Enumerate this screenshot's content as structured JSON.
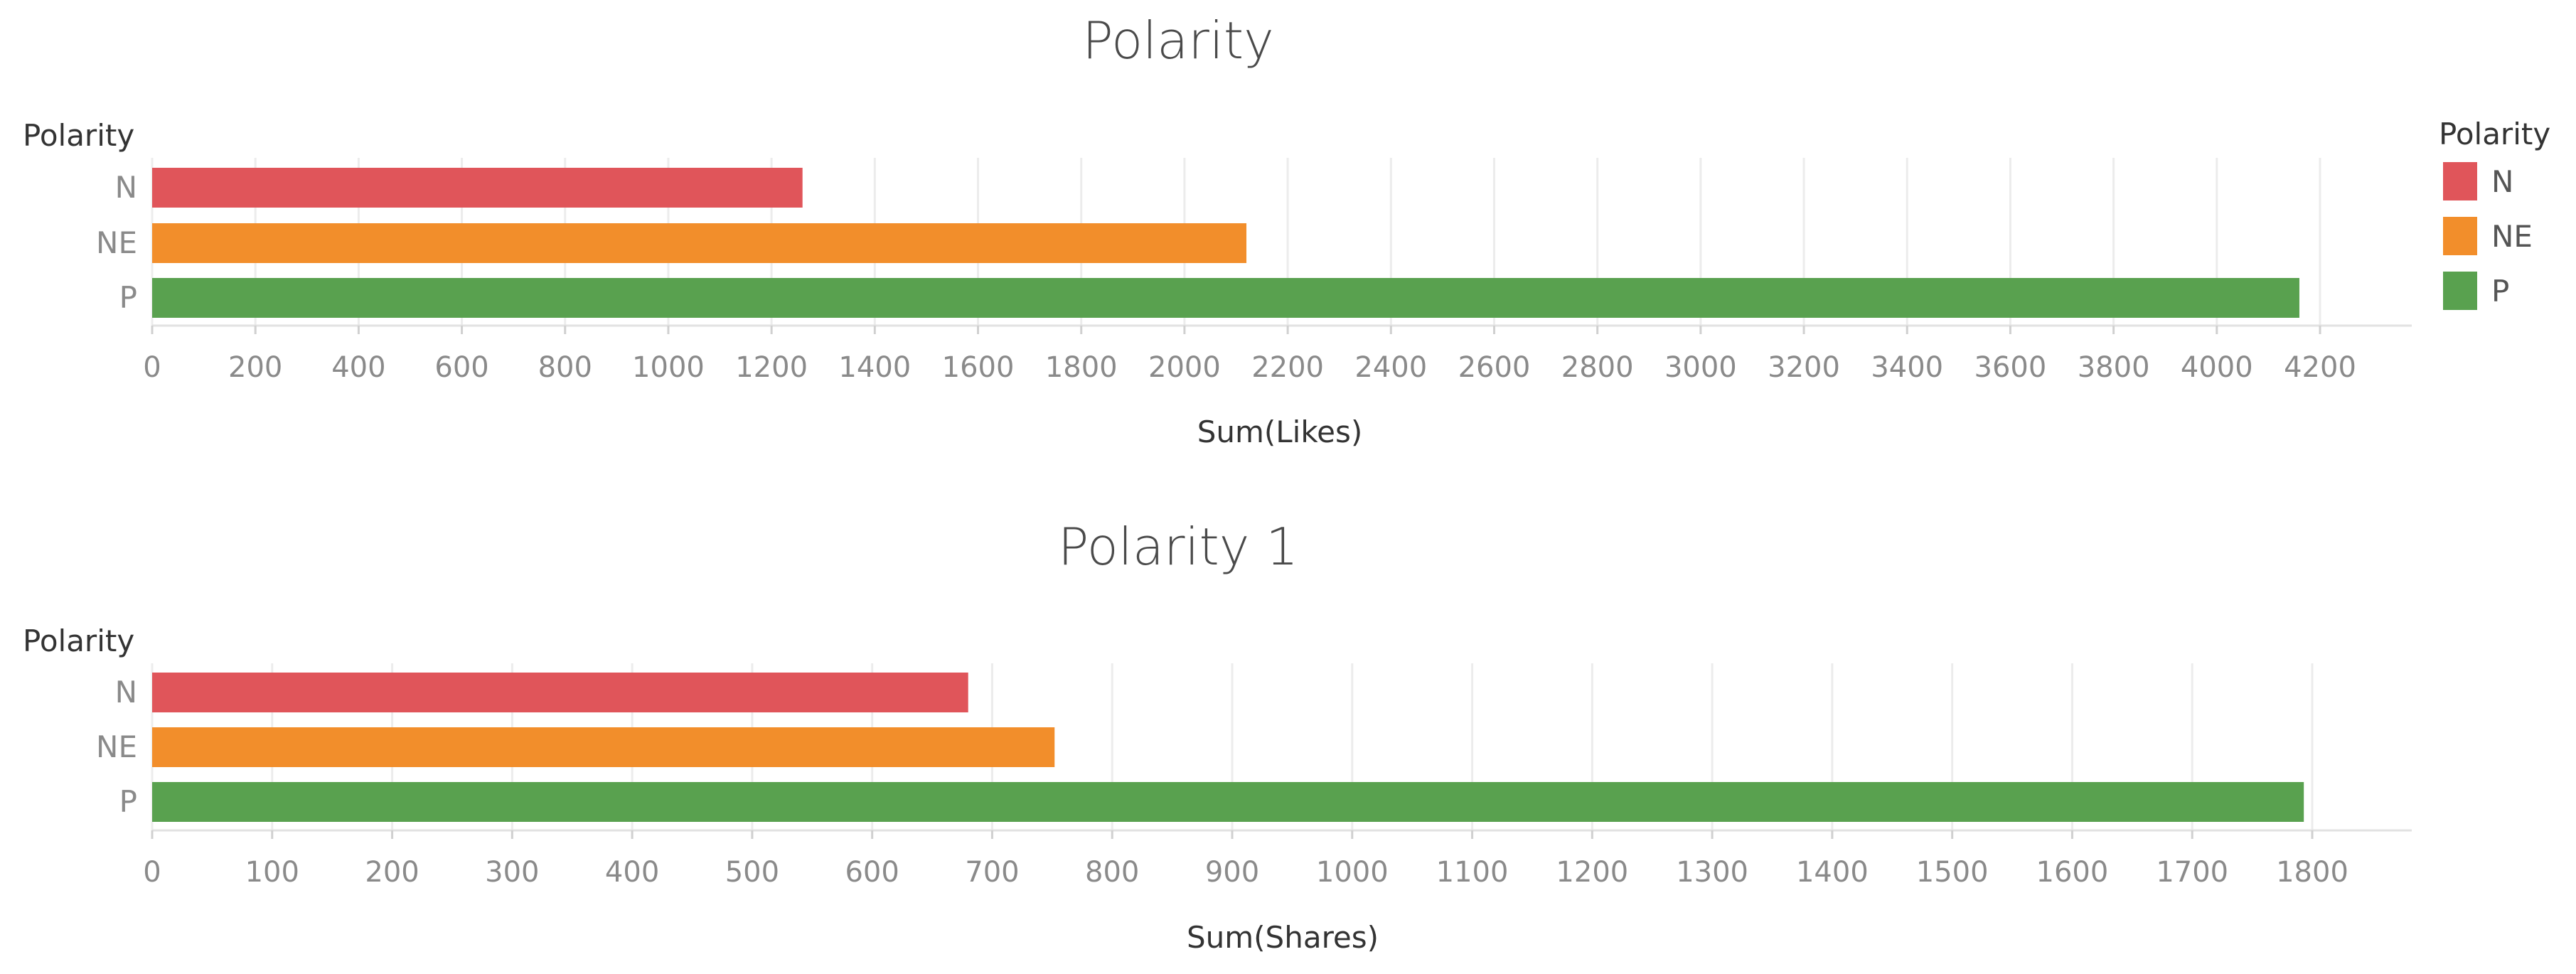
{
  "legend": {
    "title": "Polarity",
    "entries": [
      {
        "label": "N",
        "color": "#e0555a"
      },
      {
        "label": "NE",
        "color": "#f28e2b"
      },
      {
        "label": "P",
        "color": "#59a14f"
      }
    ]
  },
  "chart_data": [
    {
      "type": "bar",
      "orientation": "horizontal",
      "title": "Polarity",
      "row_field_label": "Polarity",
      "categories": [
        "N",
        "NE",
        "P"
      ],
      "values": [
        1260,
        2120,
        4160
      ],
      "colors": [
        "#e0555a",
        "#f28e2b",
        "#59a14f"
      ],
      "xlabel": "Sum(Likes)",
      "ylabel": "",
      "xlim": [
        0,
        4200
      ],
      "xticks": [
        0,
        200,
        400,
        600,
        800,
        1000,
        1200,
        1400,
        1600,
        1800,
        2000,
        2200,
        2400,
        2600,
        2800,
        3000,
        3200,
        3400,
        3600,
        3800,
        4000,
        4200
      ],
      "grid": true
    },
    {
      "type": "bar",
      "orientation": "horizontal",
      "title": "Polarity 1",
      "row_field_label": "Polarity",
      "categories": [
        "N",
        "NE",
        "P"
      ],
      "values": [
        680,
        752,
        1793
      ],
      "colors": [
        "#e0555a",
        "#f28e2b",
        "#59a14f"
      ],
      "xlabel": "Sum(Shares)",
      "ylabel": "",
      "xlim": [
        0,
        1800
      ],
      "xticks": [
        0,
        100,
        200,
        300,
        400,
        500,
        600,
        700,
        800,
        900,
        1000,
        1100,
        1200,
        1300,
        1400,
        1500,
        1600,
        1700,
        1800
      ],
      "grid": true
    }
  ]
}
